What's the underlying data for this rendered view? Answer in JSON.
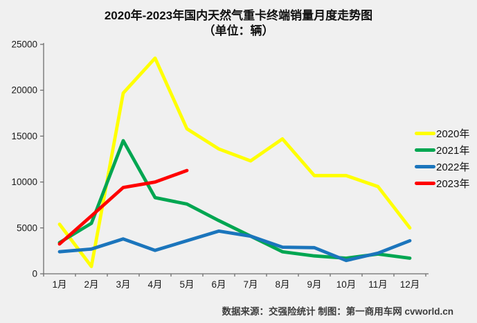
{
  "title": {
    "line1": "2020年-2023年国内天然气重卡终端销量月度走势图",
    "line2": "（单位：辆）"
  },
  "footer": "数据来源：交强险统计  制图：第一商用车网 cvworld.cn",
  "chart_data": {
    "type": "line",
    "title": "2020年-2023年国内天然气重卡终端销量月度走势图（单位：辆）",
    "categories": [
      "1月",
      "2月",
      "3月",
      "4月",
      "5月",
      "6月",
      "7月",
      "8月",
      "9月",
      "10月",
      "11月",
      "12月"
    ],
    "series": [
      {
        "name": "2020年",
        "color": "#FFFF00",
        "values": [
          5400,
          800,
          19700,
          23500,
          15800,
          13600,
          12300,
          14700,
          10700,
          10700,
          9500,
          5000
        ]
      },
      {
        "name": "2021年",
        "color": "#00A651",
        "values": [
          3400,
          5500,
          14500,
          8300,
          7600,
          5800,
          4100,
          2400,
          1950,
          1700,
          2150,
          1700
        ]
      },
      {
        "name": "2022年",
        "color": "#1B75BC",
        "values": [
          2400,
          2700,
          3800,
          2550,
          3600,
          4650,
          4100,
          2900,
          2850,
          1450,
          2250,
          3600
        ]
      },
      {
        "name": "2023年",
        "color": "#FF0000",
        "values": [
          3250,
          6300,
          9400,
          10000,
          11250
        ]
      }
    ],
    "ylim": [
      0,
      25000
    ],
    "yticks": [
      0,
      5000,
      10000,
      15000,
      20000,
      25000
    ],
    "xlabel": "",
    "ylabel": "",
    "grid": false,
    "legend_position": "right"
  }
}
